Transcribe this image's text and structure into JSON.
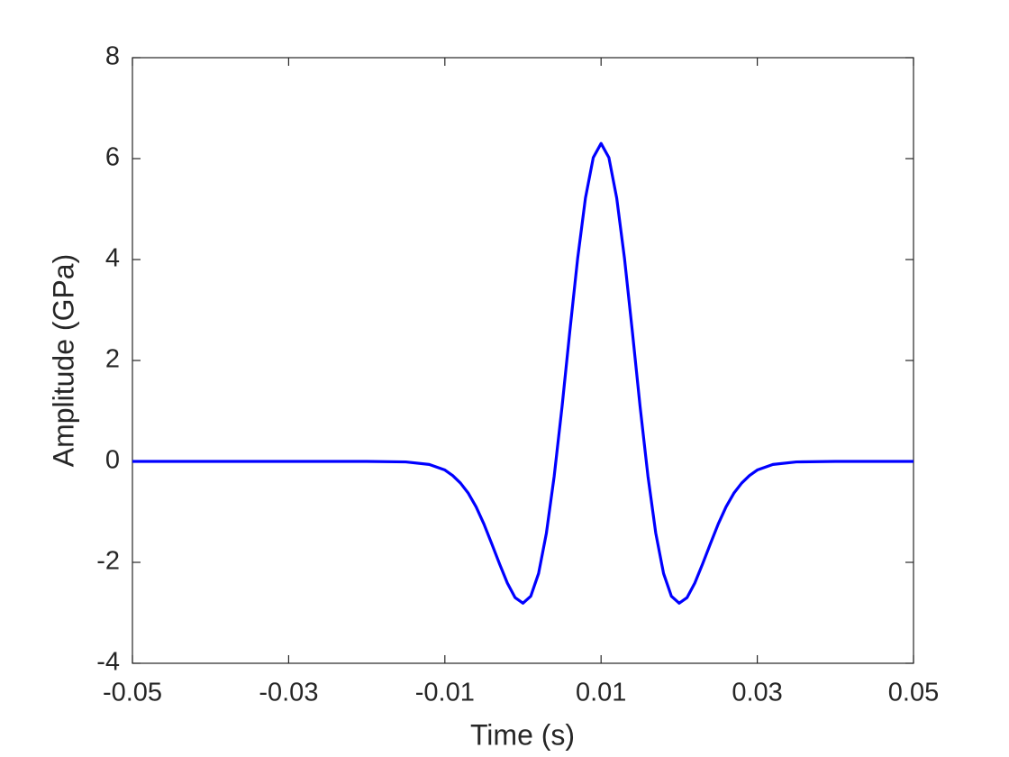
{
  "chart_data": {
    "type": "line",
    "xlabel": "Time (s)",
    "ylabel": "Amplitude (GPa)",
    "x": [
      -0.05,
      -0.04,
      -0.03,
      -0.02,
      -0.015,
      -0.012,
      -0.01,
      -0.009,
      -0.008,
      -0.007,
      -0.006,
      -0.005,
      -0.004,
      -0.003,
      -0.002,
      -0.001,
      0,
      0.001,
      0.002,
      0.003,
      0.004,
      0.005,
      0.006,
      0.007,
      0.008,
      0.009,
      0.01,
      0.011,
      0.012,
      0.013,
      0.014,
      0.015,
      0.016,
      0.017,
      0.018,
      0.019,
      0.02,
      0.021,
      0.022,
      0.023,
      0.024,
      0.025,
      0.026,
      0.027,
      0.028,
      0.029,
      0.03,
      0.032,
      0.035,
      0.04,
      0.05
    ],
    "series": [
      {
        "color": "#0000ff",
        "values": [
          0,
          0,
          0,
          0,
          -0.01,
          -0.06,
          -0.17,
          -0.28,
          -0.43,
          -0.63,
          -0.9,
          -1.24,
          -1.63,
          -2.03,
          -2.41,
          -2.7,
          -2.81,
          -2.67,
          -2.22,
          -1.42,
          -0.29,
          1.08,
          2.58,
          4.02,
          5.22,
          6.02,
          6.3,
          6.02,
          5.22,
          4.02,
          2.58,
          1.08,
          -0.29,
          -1.42,
          -2.22,
          -2.67,
          -2.81,
          -2.7,
          -2.41,
          -2.03,
          -1.63,
          -1.24,
          -0.9,
          -0.63,
          -0.43,
          -0.28,
          -0.17,
          -0.06,
          -0.01,
          0,
          0
        ]
      }
    ],
    "xlim": [
      -0.05,
      0.05
    ],
    "xticks": [
      -0.05,
      -0.03,
      -0.01,
      0.01,
      0.03,
      0.05
    ],
    "ylim": [
      -4,
      8
    ],
    "yticks": [
      -4,
      -2,
      0,
      2,
      4,
      6,
      8
    ],
    "grid": false
  }
}
